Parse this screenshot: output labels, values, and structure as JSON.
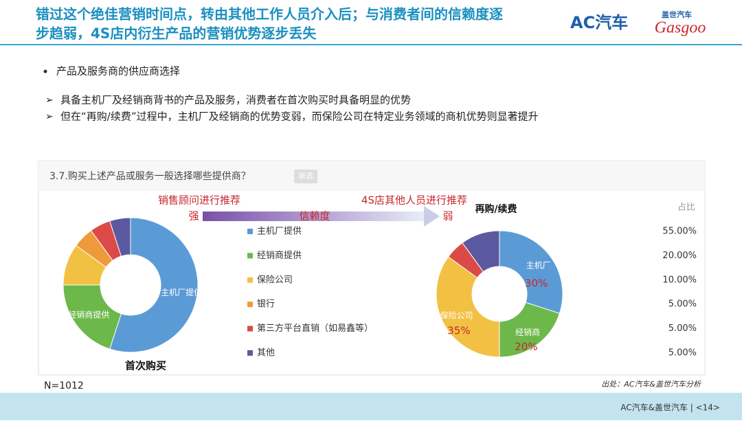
{
  "header": {
    "title_lines": [
      "错过这个绝佳营销时间点，转由其他工作人员介入后；与消费者间的信赖度逐",
      "步趋弱，4S店内衍生产品的营销优势逐步丢失"
    ],
    "logo_ac": "AC汽车",
    "logo_gasgoo_cn": "盖世汽车",
    "logo_gasgoo": "Gasgoo"
  },
  "section": "产品及服务商的供应商选择",
  "points": [
    "具备主机厂及经销商背书的产品及服务，消费者在首次购买时具备明显的优势",
    "但在“再购/续费”过程中，主机厂及经销商的优势变弱，而保险公司在特定业务领域的商机优势则显著提升"
  ],
  "question": "3.7.购买上述产品或服务一般选择哪些提供商？",
  "question_tag": "单选",
  "arrow": {
    "left_label": "销售顾问进行推荐",
    "left_end": "强",
    "middle": "信赖度",
    "right_label": "4S店其他人员进行推荐",
    "right_end": "弱"
  },
  "share_header": "占比",
  "sample": "N=1012",
  "source": "出处：AC汽车&盖世汽车分析",
  "footer": "AC汽车&盖世汽车 | <14>",
  "chart_data": [
    {
      "type": "pie",
      "title": "首次购买",
      "categories": [
        "主机厂提供",
        "经销商提供",
        "保险公司",
        "银行",
        "第三方平台直销（如易鑫等）",
        "其他"
      ],
      "values": [
        55,
        20,
        10,
        5,
        5,
        5
      ],
      "value_labels": [
        "55.00%",
        "20.00%",
        "10.00%",
        "5.00%",
        "5.00%",
        "5.00%"
      ],
      "colors": [
        "#5b9bd5",
        "#6cb84a",
        "#f2c143",
        "#ee9a3a",
        "#dc4a48",
        "#5b5aa0"
      ],
      "donut": true,
      "legend": true
    },
    {
      "type": "pie",
      "title": "再购/续费",
      "categories": [
        "主机厂",
        "经销商",
        "保险公司",
        null,
        null
      ],
      "values": [
        30,
        20,
        35,
        5,
        10
      ],
      "value_labels": [
        "30%",
        "20%",
        "35%",
        null,
        null
      ],
      "colors": [
        "#5b9bd5",
        "#6cb84a",
        "#f2c143",
        "#dc4a48",
        "#5b5aa0"
      ],
      "donut": true
    }
  ]
}
